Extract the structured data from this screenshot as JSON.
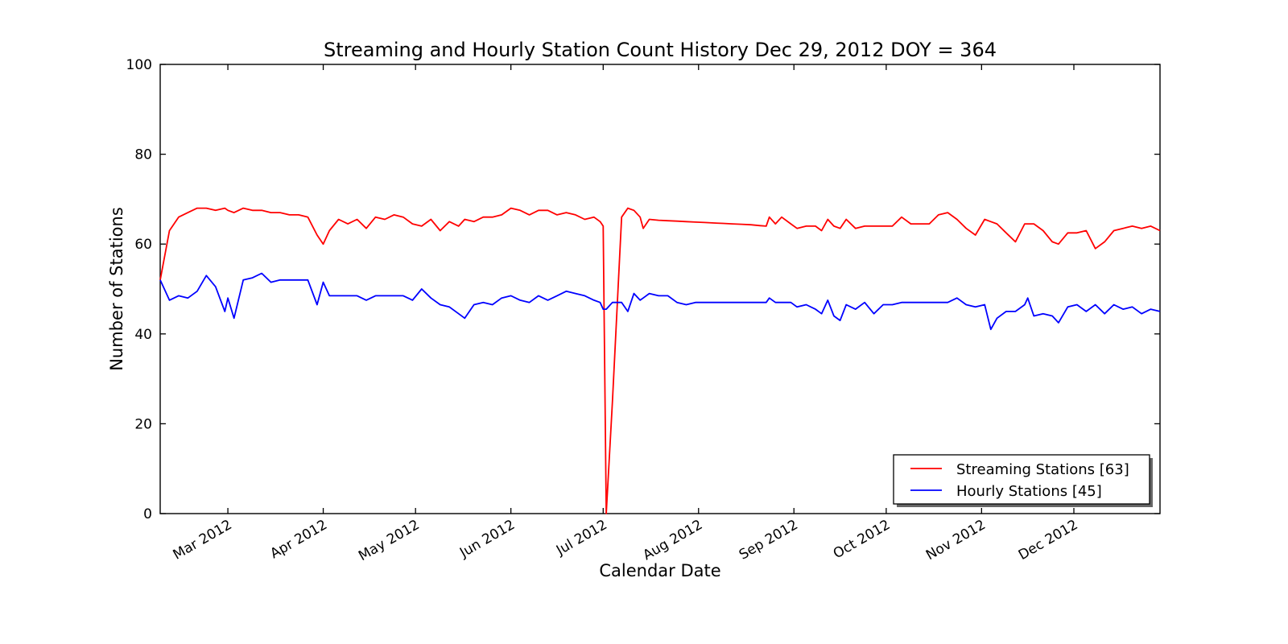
{
  "figure": {
    "title": "Streaming and Hourly Station Count History Dec 29, 2012 DOY = 364",
    "xlabel": "Calendar Date",
    "ylabel": "Number of Stations"
  },
  "legend": {
    "position": "lower right",
    "entries": [
      {
        "label": "Streaming Stations [63]",
        "color": "#ff0000"
      },
      {
        "label": "Hourly Stations [45]",
        "color": "#0000ff"
      }
    ]
  },
  "chart_data": {
    "type": "line",
    "title": "Streaming and Hourly Station Count History Dec 29, 2012 DOY = 364",
    "xlabel": "Calendar Date",
    "ylabel": "Number of Stations",
    "ylim": [
      0,
      100
    ],
    "y_ticks": [
      0,
      20,
      40,
      60,
      80,
      100
    ],
    "grid": false,
    "x_range": [
      "2012-02-08",
      "2012-12-29"
    ],
    "x_ticks": [
      {
        "date": "2012-03-01",
        "label": "Mar 2012"
      },
      {
        "date": "2012-04-01",
        "label": "Apr 2012"
      },
      {
        "date": "2012-05-01",
        "label": "May 2012"
      },
      {
        "date": "2012-06-01",
        "label": "Jun 2012"
      },
      {
        "date": "2012-07-01",
        "label": "Jul 2012"
      },
      {
        "date": "2012-08-01",
        "label": "Aug 2012"
      },
      {
        "date": "2012-09-01",
        "label": "Sep 2012"
      },
      {
        "date": "2012-10-01",
        "label": "Oct 2012"
      },
      {
        "date": "2012-11-01",
        "label": "Nov 2012"
      },
      {
        "date": "2012-12-01",
        "label": "Dec 2012"
      }
    ],
    "x": [
      "2012-02-08",
      "2012-02-11",
      "2012-02-14",
      "2012-02-17",
      "2012-02-20",
      "2012-02-23",
      "2012-02-26",
      "2012-02-29",
      "2012-03-01",
      "2012-03-03",
      "2012-03-06",
      "2012-03-09",
      "2012-03-12",
      "2012-03-15",
      "2012-03-18",
      "2012-03-21",
      "2012-03-24",
      "2012-03-27",
      "2012-03-30",
      "2012-04-01",
      "2012-04-03",
      "2012-04-06",
      "2012-04-09",
      "2012-04-12",
      "2012-04-15",
      "2012-04-18",
      "2012-04-21",
      "2012-04-24",
      "2012-04-27",
      "2012-04-30",
      "2012-05-03",
      "2012-05-06",
      "2012-05-09",
      "2012-05-12",
      "2012-05-15",
      "2012-05-17",
      "2012-05-20",
      "2012-05-23",
      "2012-05-26",
      "2012-05-29",
      "2012-06-01",
      "2012-06-04",
      "2012-06-07",
      "2012-06-10",
      "2012-06-13",
      "2012-06-16",
      "2012-06-19",
      "2012-06-22",
      "2012-06-25",
      "2012-06-28",
      "2012-06-30",
      "2012-07-01",
      "2012-07-02",
      "2012-07-04",
      "2012-07-07",
      "2012-07-09",
      "2012-07-11",
      "2012-07-13",
      "2012-07-14",
      "2012-07-16",
      "2012-07-19",
      "2012-07-22",
      "2012-07-25",
      "2012-07-28",
      "2012-07-31",
      "2012-08-03",
      "2012-08-06",
      "2012-08-09",
      "2012-08-12",
      "2012-08-15",
      "2012-08-18",
      "2012-08-21",
      "2012-08-23",
      "2012-08-24",
      "2012-08-26",
      "2012-08-28",
      "2012-08-31",
      "2012-09-02",
      "2012-09-05",
      "2012-09-08",
      "2012-09-10",
      "2012-09-12",
      "2012-09-14",
      "2012-09-16",
      "2012-09-18",
      "2012-09-21",
      "2012-09-24",
      "2012-09-27",
      "2012-09-30",
      "2012-10-03",
      "2012-10-06",
      "2012-10-09",
      "2012-10-12",
      "2012-10-15",
      "2012-10-18",
      "2012-10-21",
      "2012-10-24",
      "2012-10-27",
      "2012-10-30",
      "2012-11-02",
      "2012-11-04",
      "2012-11-06",
      "2012-11-09",
      "2012-11-12",
      "2012-11-15",
      "2012-11-16",
      "2012-11-18",
      "2012-11-21",
      "2012-11-24",
      "2012-11-26",
      "2012-11-29",
      "2012-12-02",
      "2012-12-05",
      "2012-12-08",
      "2012-12-11",
      "2012-12-14",
      "2012-12-17",
      "2012-12-20",
      "2012-12-23",
      "2012-12-26",
      "2012-12-29"
    ],
    "series": [
      {
        "name": "Streaming Stations [63]",
        "color": "#ff0000",
        "final_value": 63,
        "values": [
          52,
          63,
          66,
          67,
          68,
          68,
          67.5,
          68,
          67.5,
          67,
          68,
          67.5,
          67.5,
          67,
          67,
          66.5,
          66.5,
          66,
          62,
          60,
          63,
          65.5,
          64.5,
          65.5,
          63.5,
          66,
          65.5,
          66.5,
          66,
          64.5,
          64,
          65.5,
          63,
          65,
          64,
          65.5,
          65,
          66,
          66,
          66.5,
          68,
          67.5,
          66.5,
          67.5,
          67.5,
          66.5,
          67,
          66.5,
          65.5,
          66,
          65,
          64,
          0,
          25,
          66,
          68,
          67.5,
          66,
          63.5,
          65.5,
          65.3,
          65.2,
          65.1,
          65,
          64.9,
          64.8,
          64.7,
          64.6,
          64.5,
          64.4,
          64.3,
          64.1,
          64,
          66,
          64.5,
          66,
          64.5,
          63.5,
          64,
          64,
          63,
          65.5,
          64,
          63.5,
          65.5,
          63.5,
          64,
          64,
          64,
          64,
          66,
          64.5,
          64.5,
          64.5,
          66.5,
          67,
          65.5,
          63.5,
          62,
          65.5,
          65,
          64.5,
          62.5,
          60.5,
          64.5,
          64.5,
          64.5,
          63,
          60.5,
          60,
          62.5,
          62.5,
          63,
          59,
          60.5,
          63,
          63.5,
          64,
          63.5,
          64,
          63
        ]
      },
      {
        "name": "Hourly Stations [45]",
        "color": "#0000ff",
        "final_value": 45,
        "values": [
          52,
          47.5,
          48.5,
          48,
          49.5,
          53,
          50.5,
          45,
          48,
          43.5,
          52,
          52.5,
          53.5,
          51.5,
          52,
          52,
          52,
          52,
          46.5,
          51.5,
          48.5,
          48.5,
          48.5,
          48.5,
          47.5,
          48.5,
          48.5,
          48.5,
          48.5,
          47.5,
          50,
          48,
          46.5,
          46,
          44.5,
          43.5,
          46.5,
          47,
          46.5,
          48,
          48.5,
          47.5,
          47,
          48.5,
          47.5,
          48.5,
          49.5,
          49,
          48.5,
          47.5,
          47,
          45.5,
          45.5,
          47,
          47,
          45,
          49,
          47.5,
          48,
          49,
          48.5,
          48.5,
          47,
          46.5,
          47,
          47,
          47,
          47,
          47,
          47,
          47,
          47,
          47,
          48,
          47,
          47,
          47,
          46,
          46.5,
          45.5,
          44.5,
          47.5,
          44,
          43,
          46.5,
          45.5,
          47,
          44.5,
          46.5,
          46.5,
          47,
          47,
          47,
          47,
          47,
          47,
          48,
          46.5,
          46,
          46.5,
          41,
          43.5,
          45,
          45,
          46.5,
          48,
          44,
          44.5,
          44,
          42.5,
          46,
          46.5,
          45,
          46.5,
          44.5,
          46.5,
          45.5,
          46,
          44.5,
          45.5,
          45
        ]
      }
    ]
  }
}
